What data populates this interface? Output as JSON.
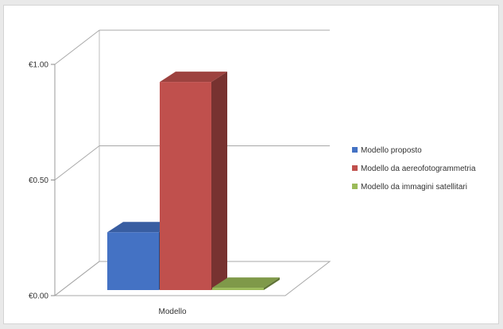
{
  "chart_data": {
    "type": "bar",
    "categories": [
      "Modello"
    ],
    "series": [
      {
        "name": "Modello proposto",
        "values": [
          0.25
        ],
        "color": "#4472c4"
      },
      {
        "name": "Modello da aereofotogrammetria",
        "values": [
          0.9
        ],
        "color": "#c0504d"
      },
      {
        "name": "Modello da immagini satellitari",
        "values": [
          0.01
        ],
        "color": "#9bbb59"
      }
    ],
    "yticks": [
      "€0.00",
      "€0.50",
      "€1.00"
    ],
    "ylim": [
      0,
      1
    ],
    "grid": true,
    "legend_position": "right",
    "style": "3d-column"
  }
}
